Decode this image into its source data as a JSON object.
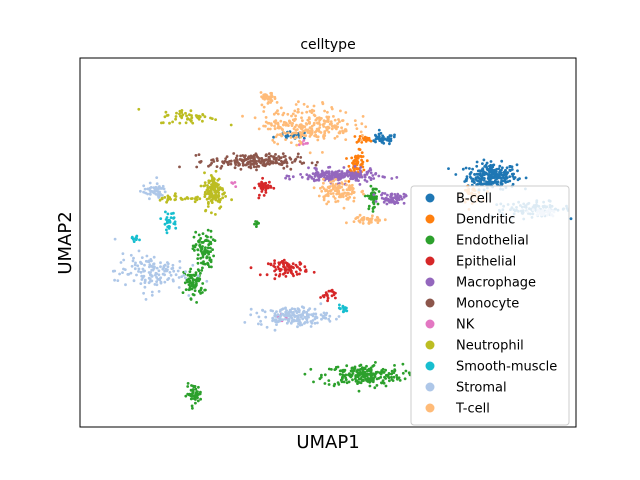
{
  "chart_data": {
    "type": "scatter",
    "title": "celltype",
    "xlabel": "UMAP1",
    "ylabel": "UMAP2",
    "xticks": [],
    "yticks": [],
    "grid": false,
    "legend_position": "lower-right",
    "xlim": [
      0,
      100
    ],
    "ylim": [
      0,
      100
    ],
    "series": [
      {
        "name": "B-cell",
        "color": "#1f77b4",
        "clusters": [
          [
            83,
            68,
            5,
            3.5,
            260
          ],
          [
            91,
            59,
            8,
            2,
            90
          ],
          [
            61,
            78,
            3,
            1.5,
            50
          ],
          [
            43,
            79,
            3,
            1,
            30
          ]
        ]
      },
      {
        "name": "Dendritic",
        "color": "#ff7f0e",
        "clusters": [
          [
            56,
            71,
            1.6,
            3.5,
            70
          ],
          [
            79,
            63,
            2,
            2,
            40
          ],
          [
            57,
            78,
            2,
            1,
            20
          ]
        ]
      },
      {
        "name": "Endothelial",
        "color": "#2ca02c",
        "clusters": [
          [
            57,
            14,
            8,
            3,
            220
          ],
          [
            25,
            48,
            2,
            5,
            90
          ],
          [
            23,
            39,
            2,
            4,
            80
          ],
          [
            59,
            62,
            1,
            3,
            40
          ],
          [
            23,
            9,
            1.5,
            2.5,
            50
          ],
          [
            36,
            55,
            1,
            1,
            8
          ]
        ]
      },
      {
        "name": "Epithelial",
        "color": "#d62728",
        "clusters": [
          [
            42,
            43,
            4,
            2,
            80
          ],
          [
            37,
            65,
            1.5,
            2,
            40
          ],
          [
            50,
            36,
            1.5,
            1.5,
            20
          ]
        ]
      },
      {
        "name": "Macrophage",
        "color": "#9467bd",
        "clusters": [
          [
            52,
            68,
            8,
            1.8,
            200
          ],
          [
            63,
            62,
            2.5,
            1.5,
            60
          ]
        ]
      },
      {
        "name": "Monocyte",
        "color": "#8c564b",
        "clusters": [
          [
            35,
            72,
            9,
            2,
            200
          ]
        ]
      },
      {
        "name": "NK",
        "color": "#e377c2",
        "clusters": [
          [
            45,
            77,
            1,
            1,
            6
          ],
          [
            41,
            30,
            1.5,
            1,
            5
          ],
          [
            31,
            66,
            1,
            1,
            4
          ]
        ]
      },
      {
        "name": "Neutrophil",
        "color": "#bcbd22",
        "clusters": [
          [
            27,
            64,
            2,
            5,
            120
          ],
          [
            22,
            84,
            6,
            2,
            50
          ],
          [
            21,
            62,
            7,
            1,
            40
          ]
        ]
      },
      {
        "name": "Smooth-muscle",
        "color": "#17becf",
        "clusters": [
          [
            18,
            56,
            1.5,
            2.5,
            30
          ],
          [
            53,
            32,
            1,
            1,
            15
          ],
          [
            11,
            51,
            1.5,
            1,
            10
          ]
        ]
      },
      {
        "name": "Stromal",
        "color": "#aec7e8",
        "clusters": [
          [
            43,
            30,
            7,
            2.5,
            170
          ],
          [
            14,
            42,
            7,
            5,
            140
          ],
          [
            15,
            64,
            2.5,
            2,
            50
          ],
          [
            93,
            58,
            3,
            1,
            30
          ]
        ]
      },
      {
        "name": "T-cell",
        "color": "#ffbb78",
        "clusters": [
          [
            46,
            82,
            9,
            5,
            260
          ],
          [
            52,
            64,
            4,
            3,
            110
          ],
          [
            38,
            89,
            1.5,
            1.5,
            30
          ],
          [
            58,
            56,
            3,
            1.5,
            40
          ]
        ]
      }
    ]
  }
}
